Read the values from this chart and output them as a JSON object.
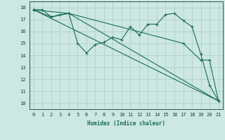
{
  "xlabel": "Humidex (Indice chaleur)",
  "bg_color": "#cce8e0",
  "grid_color": "#aaccc4",
  "line_color": "#1a6b5a",
  "xlim": [
    -0.5,
    21.5
  ],
  "ylim": [
    9.5,
    18.5
  ],
  "xticks": [
    0,
    1,
    2,
    3,
    4,
    5,
    6,
    7,
    8,
    9,
    10,
    11,
    12,
    13,
    14,
    15,
    16,
    17,
    18,
    19,
    20,
    21
  ],
  "yticks": [
    10,
    11,
    12,
    13,
    14,
    15,
    16,
    17,
    18
  ],
  "lines": [
    {
      "x": [
        0,
        1,
        2,
        3,
        4,
        5,
        6,
        7,
        8,
        9,
        10,
        11,
        12,
        13,
        14,
        15,
        16,
        17,
        18,
        19,
        20,
        21
      ],
      "y": [
        17.8,
        17.8,
        17.2,
        17.4,
        17.5,
        15.0,
        14.2,
        14.9,
        15.1,
        15.5,
        15.3,
        16.4,
        15.7,
        16.6,
        16.6,
        17.4,
        17.5,
        16.9,
        16.4,
        14.1,
        11.5,
        10.2
      ]
    },
    {
      "x": [
        0,
        2,
        4,
        21
      ],
      "y": [
        17.8,
        17.2,
        17.5,
        10.2
      ]
    },
    {
      "x": [
        0,
        4,
        17,
        19,
        20,
        21
      ],
      "y": [
        17.8,
        17.5,
        15.0,
        13.6,
        13.6,
        10.2
      ]
    },
    {
      "x": [
        0,
        21
      ],
      "y": [
        17.8,
        10.2
      ]
    }
  ]
}
